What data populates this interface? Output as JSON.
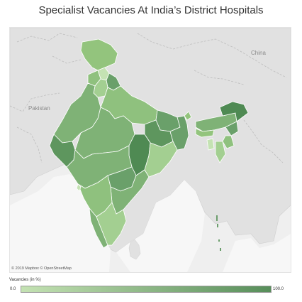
{
  "title": "Specialist Vacancies At India’s District Hospitals",
  "map": {
    "labels": {
      "china": "China",
      "pakistan": "Pakistan"
    },
    "attribution": "© 2019 Mapbox © OpenStreetMap",
    "colors": {
      "background": "#efefef",
      "land": "#e1e1e1",
      "water": "#f7f7f7",
      "border": "#bfbfbf",
      "state_border": "#ffffff"
    }
  },
  "legend": {
    "title": "Vacancies (in %)",
    "min_label": "0.0",
    "max_label": "100.0",
    "color_min": "#c4e2b3",
    "color_max": "#578e5a"
  }
}
